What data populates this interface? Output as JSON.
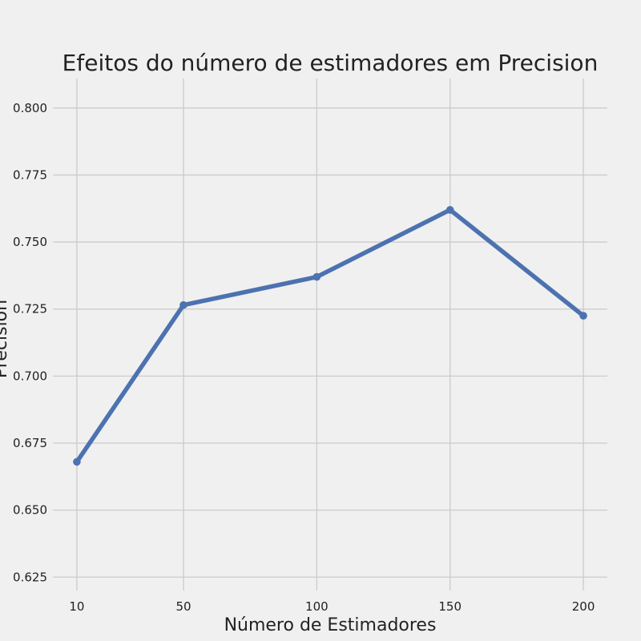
{
  "chart_data": {
    "type": "line",
    "title": "Efeitos do número de estimadores em Precision",
    "xlabel": "Número de Estimadores",
    "ylabel": "Precision",
    "x": [
      10,
      50,
      100,
      150,
      200
    ],
    "x_tick_labels": [
      "10",
      "50",
      "100",
      "150",
      "200"
    ],
    "y_ticks": [
      0.625,
      0.65,
      0.675,
      0.7,
      0.725,
      0.75,
      0.775,
      0.8
    ],
    "y_tick_labels": [
      "0.625",
      "0.650",
      "0.675",
      "0.700",
      "0.725",
      "0.750",
      "0.775",
      "0.800"
    ],
    "ylim": [
      0.62,
      0.811
    ],
    "xlim": [
      1,
      209
    ],
    "grid": true,
    "series": [
      {
        "values": [
          0.668,
          0.7265,
          0.737,
          0.762,
          0.7225
        ],
        "color": "#4c72b0"
      }
    ],
    "background_color": "#f0f0f0",
    "grid_color": "#cbcbcb"
  }
}
